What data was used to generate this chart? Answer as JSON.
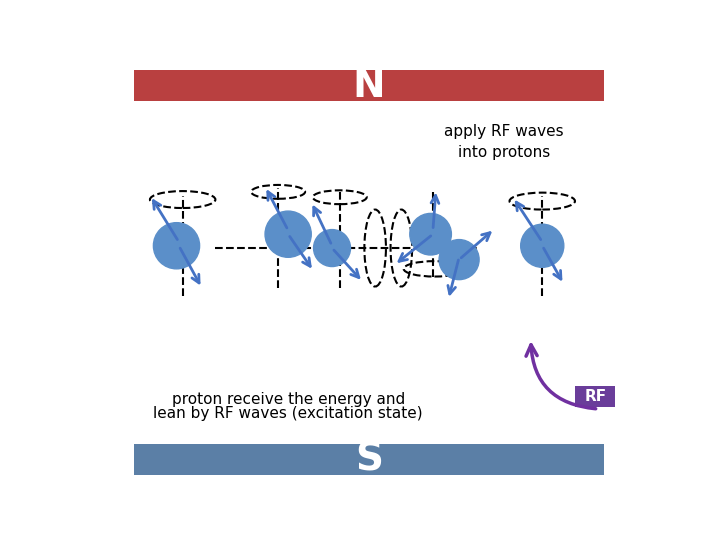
{
  "bg_color": "#ffffff",
  "north_bar_color": "#b94040",
  "south_bar_color": "#5b7fa6",
  "north_label": "N",
  "south_label": "S",
  "bar_text_color": "#ffffff",
  "apply_rf_text": "apply RF waves\ninto protons",
  "bottom_text_line1": "proton receive the energy and",
  "bottom_text_line2": "lean by RF waves (excitation state)",
  "rf_label": "RF",
  "rf_box_color": "#6a3d9a",
  "rf_text_color": "#ffffff",
  "proton_color": "#5b8fc9",
  "arrow_color": "#4472c4",
  "dashed_color": "#000000",
  "purple_arrow_color": "#7030a0"
}
